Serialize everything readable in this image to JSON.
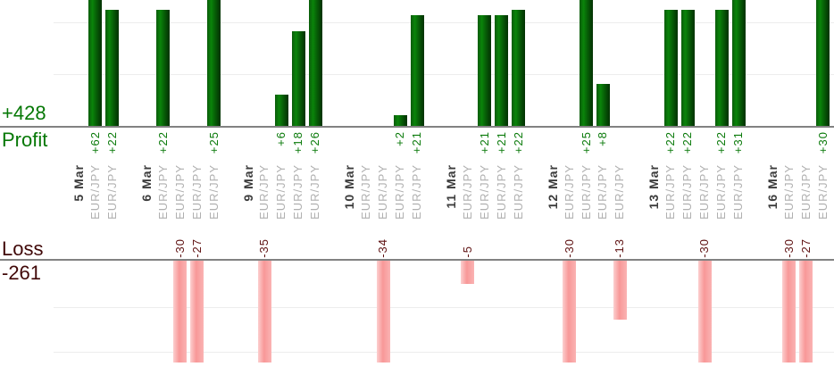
{
  "chart_data": {
    "type": "bar",
    "variant": "daily-trades-profit-loss",
    "orientation": "profit bars up from top axis, loss bars down from bottom axis",
    "profit_axis": {
      "total": "+428",
      "label": "Profit",
      "gridline_interval": 10
    },
    "loss_axis": {
      "total": "-261",
      "label": "Loss",
      "gridline_interval": 10
    },
    "symbol": "EUR/JPY",
    "groups": [
      {
        "date": "5 Mar",
        "trades": [
          62,
          22
        ]
      },
      {
        "date": "6 Mar",
        "trades": [
          22,
          -30,
          -27,
          25
        ]
      },
      {
        "date": "9 Mar",
        "trades": [
          -35,
          6,
          18,
          26
        ]
      },
      {
        "date": "10 Mar",
        "trades": [
          null,
          -34,
          2,
          21
        ]
      },
      {
        "date": "11 Mar",
        "trades": [
          -5,
          21,
          21,
          22
        ]
      },
      {
        "date": "12 Mar",
        "trades": [
          -30,
          25,
          8,
          -13
        ]
      },
      {
        "date": "13 Mar",
        "trades": [
          22,
          22,
          -30,
          22,
          31
        ]
      },
      {
        "date": "16 Mar",
        "trades": [
          -30,
          -27,
          30
        ]
      }
    ],
    "colors": {
      "profit_bar": "#0a840a",
      "profit_text": "#0a7a0a",
      "profit_title_text": "#067806",
      "loss_bar": "#f89e9e",
      "loss_text": "#5e1111",
      "loss_title_text": "#400808",
      "date_text": "#3c3c3c",
      "symbol_text": "#b0b0b0",
      "axis_line": "#828282",
      "gridline": "#ededed"
    }
  }
}
